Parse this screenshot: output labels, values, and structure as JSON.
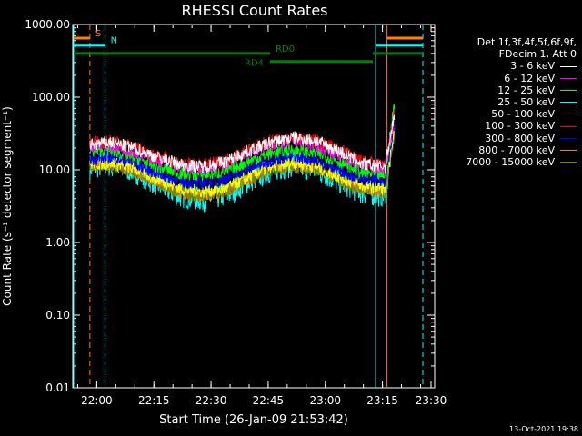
{
  "chart_data": {
    "type": "line",
    "title": "RHESSI Count Rates",
    "xlabel": "Start Time (26-Jan-09 21:53:42)",
    "ylabel": "Count Rate (s⁻¹ detector segment⁻¹)",
    "yscale": "log",
    "ylim": [
      0.01,
      1000
    ],
    "xlim_minutes_from_start": [
      0,
      95
    ],
    "x_ticks": [
      {
        "label": "22:00",
        "minute": 6.3
      },
      {
        "label": "22:15",
        "minute": 21.3
      },
      {
        "label": "22:30",
        "minute": 36.3
      },
      {
        "label": "22:45",
        "minute": 51.3
      },
      {
        "label": "23:00",
        "minute": 66.3
      },
      {
        "label": "23:15",
        "minute": 81.3
      },
      {
        "label": "23:30",
        "minute": 96.3
      }
    ],
    "y_ticks": [
      "1000.00",
      "100.00",
      "10.00",
      "1.00",
      "0.10",
      "0.01"
    ],
    "grid": false,
    "legend_position": "right",
    "legend_header": [
      "Det 1f,3f,4f,5f,6f,9f,",
      "FDecim 1, Att 0"
    ],
    "series": [
      {
        "name": "3 - 6 keV",
        "color": "#ffffff",
        "values_at_x": [
          null,
          22,
          24,
          20,
          15,
          12,
          11,
          13,
          18,
          24,
          28,
          25,
          18,
          12,
          11,
          60
        ]
      },
      {
        "name": "6 - 12 keV",
        "color": "#ff00ff",
        "values_at_x": [
          null,
          22,
          22,
          18,
          14,
          11,
          10.5,
          12,
          17,
          22,
          25,
          22,
          16,
          11.5,
          11,
          55
        ]
      },
      {
        "name": "12 - 25 keV",
        "color": "#00ff00",
        "values_at_x": [
          null,
          18,
          19,
          15,
          11,
          9,
          8.5,
          9.5,
          13,
          17,
          19,
          17,
          13,
          9,
          8.5,
          90
        ]
      },
      {
        "name": "25 - 50 keV",
        "color": "#00ffff",
        "values_at_x": [
          null,
          11,
          12,
          10,
          6.5,
          4.5,
          4,
          4.5,
          7,
          10,
          12,
          10,
          7,
          5,
          4.5,
          40
        ]
      },
      {
        "name": "50 - 100 keV",
        "color": "#ffff00",
        "values_at_x": [
          null,
          12,
          12.5,
          10.5,
          7.5,
          5.5,
          5,
          5.5,
          8,
          11,
          12.5,
          11,
          8,
          6,
          5.5,
          40
        ]
      },
      {
        "name": "100 - 300 keV",
        "color": "#ff0000",
        "values_at_x": [
          null,
          24,
          25,
          21,
          16,
          12.5,
          11.5,
          13.5,
          19,
          25,
          28,
          25,
          19,
          13,
          11.5,
          60
        ]
      },
      {
        "name": "300 - 800 keV",
        "color": "#0000ff",
        "values_at_x": [
          null,
          14,
          15,
          12.5,
          9,
          7,
          6.5,
          7.5,
          10.5,
          13.5,
          15.5,
          13.5,
          10,
          7.5,
          7,
          45
        ]
      },
      {
        "name": "800 - 7000 keV",
        "color": "#ff8000",
        "values_at_x": [
          null,
          12,
          12,
          10,
          7,
          5,
          4.5,
          5,
          7.5,
          10.5,
          11.5,
          10.5,
          7.5,
          5.5,
          5,
          40
        ]
      },
      {
        "name": "7000 - 15000 keV",
        "color": "#808000",
        "values_at_x": [
          null,
          11.5,
          11.5,
          9.5,
          6.8,
          4.8,
          4.3,
          4.8,
          7.2,
          10,
          11,
          10,
          7.2,
          5.2,
          4.8,
          38
        ]
      }
    ],
    "x_sample_minutes": [
      0,
      4.5,
      10,
      16,
      22,
      28,
      34,
      40,
      46,
      52,
      58,
      64,
      70,
      76,
      82,
      84.5
    ],
    "flags": [
      {
        "label": "S",
        "color": "#ff8000",
        "segments": [
          [
            0,
            4.5
          ],
          [
            82.5,
            95
          ]
        ],
        "level": 650
      },
      {
        "label": "N",
        "color": "#00ffff",
        "segments": [
          [
            0,
            8.5
          ],
          [
            79.5,
            95
          ]
        ],
        "level": 520
      },
      {
        "label": "RD0",
        "color": "#008000",
        "segments": [
          [
            0,
            51.8
          ],
          [
            78.8,
            95
          ]
        ],
        "level": 400
      },
      {
        "label": "RD4",
        "color": "#008000",
        "segments": [
          [
            51.8,
            78.8
          ]
        ],
        "level": 310
      }
    ],
    "vertical_markers": [
      {
        "minute": 0,
        "color": "#00ffff",
        "style": "solid"
      },
      {
        "minute": 4.5,
        "color": "#ff8000",
        "style": "dashed"
      },
      {
        "minute": 8.5,
        "color": "#00ffff",
        "style": "dashed"
      },
      {
        "minute": 79.5,
        "color": "#00ffff",
        "style": "solid"
      },
      {
        "minute": 82.5,
        "color": "#ff8000",
        "style": "solid"
      },
      {
        "minute": 94.7,
        "color": "#ff8000",
        "style": "dashed"
      },
      {
        "minute": 95,
        "color": "#00ffff",
        "style": "dashed"
      }
    ]
  },
  "timestamp": "13-Oct-2021 19:38"
}
